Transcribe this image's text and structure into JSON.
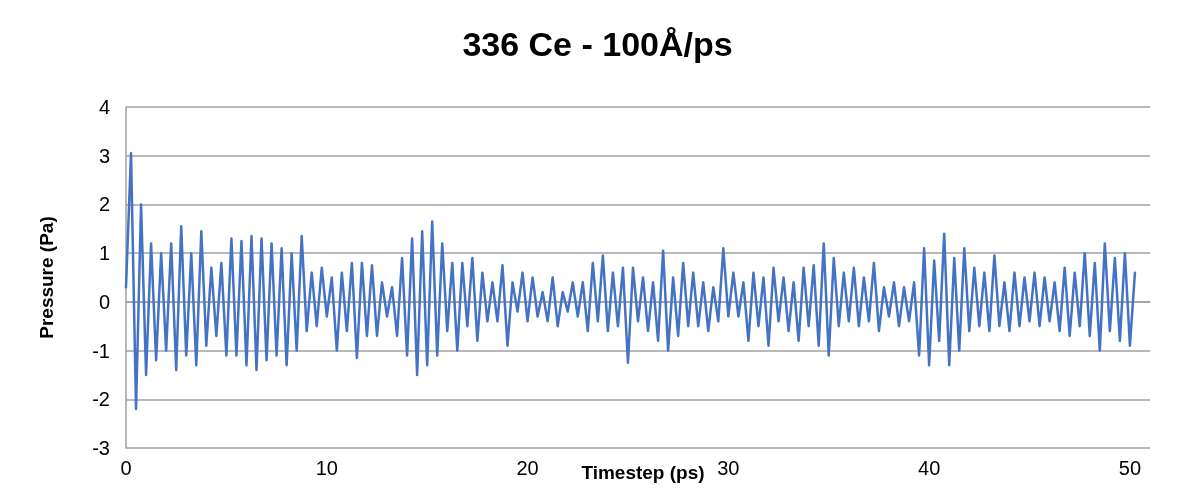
{
  "chart_data": {
    "type": "line",
    "title": "336 Ce - 100Å/ps",
    "xlabel": "Timestep (ps)",
    "ylabel": "Pressure (Pa)",
    "x": [
      0,
      0.25,
      0.5,
      0.75,
      1,
      1.25,
      1.5,
      1.75,
      2,
      2.25,
      2.5,
      2.75,
      3,
      3.25,
      3.5,
      3.75,
      4,
      4.25,
      4.5,
      4.75,
      5,
      5.25,
      5.5,
      5.75,
      6,
      6.25,
      6.5,
      6.75,
      7,
      7.25,
      7.5,
      7.75,
      8,
      8.25,
      8.5,
      8.75,
      9,
      9.25,
      9.5,
      9.75,
      10,
      10.25,
      10.5,
      10.75,
      11,
      11.25,
      11.5,
      11.75,
      12,
      12.25,
      12.5,
      12.75,
      13,
      13.25,
      13.5,
      13.75,
      14,
      14.25,
      14.5,
      14.75,
      15,
      15.25,
      15.5,
      15.75,
      16,
      16.25,
      16.5,
      16.75,
      17,
      17.25,
      17.5,
      17.75,
      18,
      18.25,
      18.5,
      18.75,
      19,
      19.25,
      19.5,
      19.75,
      20,
      20.25,
      20.5,
      20.75,
      21,
      21.25,
      21.5,
      21.75,
      22,
      22.25,
      22.5,
      22.75,
      23,
      23.25,
      23.5,
      23.75,
      24,
      24.25,
      24.5,
      24.75,
      25,
      25.25,
      25.5,
      25.75,
      26,
      26.25,
      26.5,
      26.75,
      27,
      27.25,
      27.5,
      27.75,
      28,
      28.25,
      28.5,
      28.75,
      29,
      29.25,
      29.5,
      29.75,
      30,
      30.25,
      30.5,
      30.75,
      31,
      31.25,
      31.5,
      31.75,
      32,
      32.25,
      32.5,
      32.75,
      33,
      33.25,
      33.5,
      33.75,
      34,
      34.25,
      34.5,
      34.75,
      35,
      35.25,
      35.5,
      35.75,
      36,
      36.25,
      36.5,
      36.75,
      37,
      37.25,
      37.5,
      37.75,
      38,
      38.25,
      38.5,
      38.75,
      39,
      39.25,
      39.5,
      39.75,
      40,
      40.25,
      40.5,
      40.75,
      41,
      41.25,
      41.5,
      41.75,
      42,
      42.25,
      42.5,
      42.75,
      43,
      43.25,
      43.5,
      43.75,
      44,
      44.25,
      44.5,
      44.75,
      45,
      45.25,
      45.5,
      45.75,
      46,
      46.25,
      46.5,
      46.75,
      47,
      47.25,
      47.5,
      47.75,
      48,
      48.25,
      48.5,
      48.75,
      49,
      49.25,
      49.5,
      49.75,
      50,
      50.25
    ],
    "series": [
      {
        "color": "#4472c4",
        "values": [
          0.3,
          3.05,
          -2.2,
          2.0,
          -1.5,
          1.2,
          -1.2,
          1.0,
          -1.0,
          1.2,
          -1.4,
          1.55,
          -1.1,
          1.0,
          -1.3,
          1.45,
          -0.9,
          0.7,
          -0.7,
          0.8,
          -1.1,
          1.3,
          -1.1,
          1.25,
          -1.3,
          1.35,
          -1.4,
          1.3,
          -1.2,
          1.2,
          -1.1,
          1.1,
          -1.3,
          1.0,
          -1.0,
          1.35,
          -0.6,
          0.6,
          -0.5,
          0.7,
          -0.3,
          0.5,
          -1.0,
          0.6,
          -0.6,
          0.8,
          -1.15,
          0.8,
          -0.7,
          0.75,
          -0.7,
          0.4,
          -0.3,
          0.3,
          -0.7,
          0.9,
          -1.1,
          1.3,
          -1.5,
          1.45,
          -1.3,
          1.65,
          -1.1,
          1.2,
          -0.6,
          0.8,
          -1.0,
          0.8,
          -0.5,
          0.9,
          -0.8,
          0.6,
          -0.4,
          0.4,
          -0.4,
          0.75,
          -0.9,
          0.4,
          -0.2,
          0.6,
          -0.4,
          0.5,
          -0.3,
          0.2,
          -0.4,
          0.5,
          -0.5,
          0.2,
          -0.2,
          0.4,
          -0.3,
          0.4,
          -0.6,
          0.8,
          -0.4,
          0.95,
          -0.6,
          0.6,
          -0.5,
          0.7,
          -1.25,
          0.7,
          -0.4,
          0.5,
          -0.6,
          0.4,
          -0.8,
          1.05,
          -1.0,
          0.5,
          -0.7,
          0.8,
          -0.5,
          0.6,
          -0.5,
          0.4,
          -0.6,
          0.3,
          -0.4,
          1.1,
          -0.3,
          0.6,
          -0.3,
          0.4,
          -0.8,
          0.6,
          -0.5,
          0.5,
          -0.9,
          0.7,
          -0.4,
          0.5,
          -0.6,
          0.4,
          -0.8,
          0.7,
          -0.5,
          0.75,
          -0.9,
          1.2,
          -1.1,
          0.9,
          -0.5,
          0.6,
          -0.4,
          0.7,
          -0.5,
          0.5,
          -0.4,
          0.8,
          -0.6,
          0.3,
          -0.3,
          0.4,
          -0.5,
          0.3,
          -0.4,
          0.4,
          -1.1,
          1.1,
          -1.3,
          0.85,
          -0.8,
          1.4,
          -1.3,
          0.9,
          -1.0,
          1.1,
          -0.6,
          0.7,
          -0.5,
          0.6,
          -0.6,
          0.95,
          -0.5,
          0.4,
          -0.6,
          0.6,
          -0.5,
          0.5,
          -0.4,
          0.6,
          -0.5,
          0.5,
          -0.4,
          0.4,
          -0.6,
          0.7,
          -0.7,
          0.6,
          -0.5,
          1.0,
          -0.7,
          0.8,
          -1.0,
          1.2,
          -0.6,
          0.9,
          -0.8,
          1.0,
          -0.9,
          0.6
        ]
      }
    ],
    "xlim": [
      0,
      51
    ],
    "xticks": [
      0,
      10,
      20,
      30,
      40,
      50
    ],
    "ylim": [
      -3,
      4
    ],
    "yticks": [
      -3,
      -2,
      -1,
      0,
      1,
      2,
      3,
      4
    ],
    "grid": "y",
    "marker": "none",
    "line_style": "solid"
  }
}
